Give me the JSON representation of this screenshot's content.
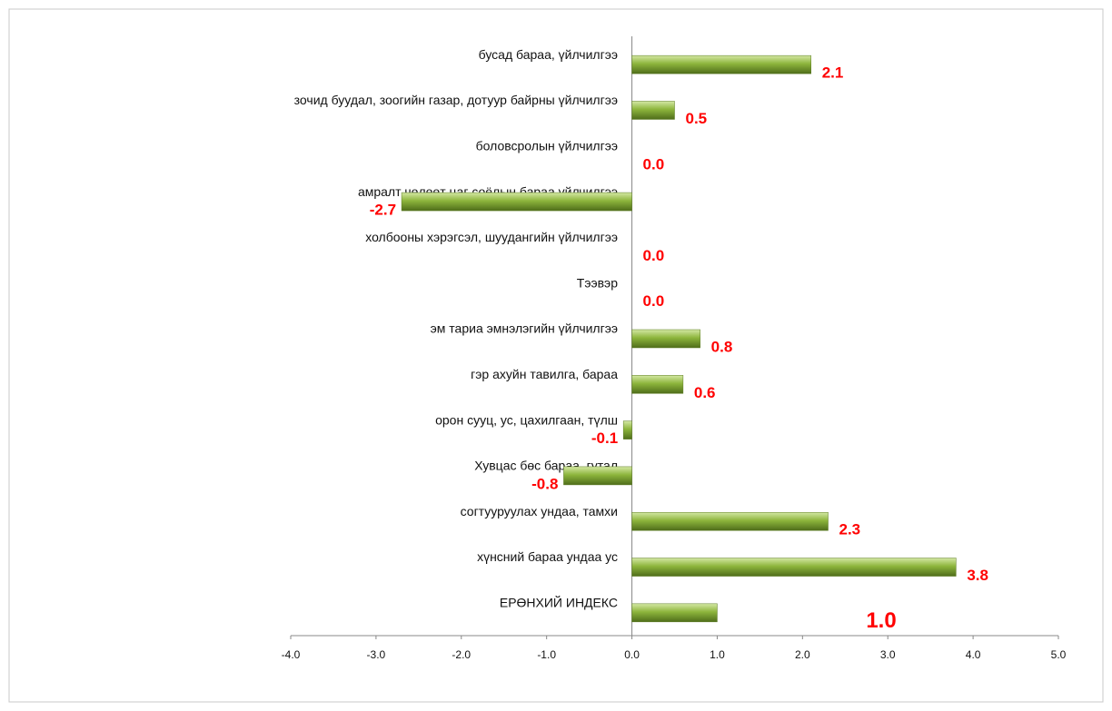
{
  "chart_data": {
    "type": "barh",
    "categories": [
      "бусад бараа, үйлчилгээ",
      "зочид буудал, зоогийн газар, дотуур байрны үйлчилгээ",
      "боловсролын үйлчилгээ",
      "амралт чөлөөт цаг соёлын бараа үйлчилгээ",
      "холбооны хэрэгсэл, шуудангийн үйлчилгээ",
      "Тээвэр",
      "эм тариа эмнэлэгийн үйлчилгээ",
      "гэр ахуйн тавилга,  бараа",
      "орон сууц, ус, цахилгаан, түлш",
      "Хувцас бөс бараа, гутал",
      "согтууруулах ундаа, тамхи",
      "хүнсний бараа ундаа ус",
      "ЕРӨНХИЙ ИНДЕКС"
    ],
    "values": [
      2.1,
      0.5,
      0,
      -2.7,
      0,
      0,
      0.8,
      0.6,
      -0.1,
      -0.8,
      2.3,
      3.8,
      1.0
    ],
    "value_labels": [
      "2.1",
      "0.5",
      "0.0",
      "-2.7",
      "0.0",
      "0.0",
      "0.8",
      "0.6",
      "-0.1",
      "-0.8",
      "2.3",
      "3.8",
      "1.0"
    ],
    "color": "#8db53c",
    "xlim": [
      -4,
      5
    ],
    "xticks": [
      {
        "value": -4,
        "label": "-4.0"
      },
      {
        "value": -3,
        "label": "-3.0"
      },
      {
        "value": -2,
        "label": "-2.0"
      },
      {
        "value": -1,
        "label": "-1.0"
      },
      {
        "value": 0,
        "label": "0.0"
      },
      {
        "value": 1,
        "label": "1.0"
      },
      {
        "value": 2,
        "label": "2.0"
      },
      {
        "value": 3,
        "label": "3.0"
      },
      {
        "value": 4,
        "label": "4.0"
      },
      {
        "value": 5,
        "label": "5.0"
      }
    ]
  }
}
